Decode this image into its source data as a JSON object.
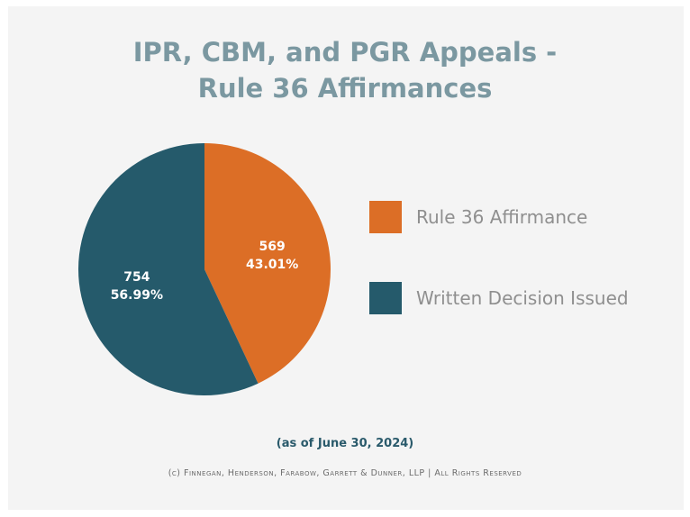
{
  "title_line1": "IPR, CBM, and PGR Appeals -",
  "title_line2": "Rule 36 Affirmances",
  "as_of": "(as of June 30, 2024)",
  "copyright": "(c) Finnegan, Henderson, Farabow, Garrett & Dunner, LLP | All Rights Reserved",
  "colors": {
    "background": "#f4f4f4",
    "title": "#7b98a1",
    "orange": "#dc6e26",
    "teal": "#255a6b",
    "legend_text": "#8f8f8f"
  },
  "chart_data": {
    "type": "pie",
    "title": "IPR, CBM, and PGR Appeals - Rule 36 Affirmances",
    "legend_position": "right",
    "slices": [
      {
        "name": "Rule 36 Affirmance",
        "value": 569,
        "percent_label": "43.01%",
        "color": "#dc6e26"
      },
      {
        "name": "Written Decision Issued",
        "value": 754,
        "percent_label": "56.99%",
        "color": "#255a6b"
      }
    ]
  }
}
